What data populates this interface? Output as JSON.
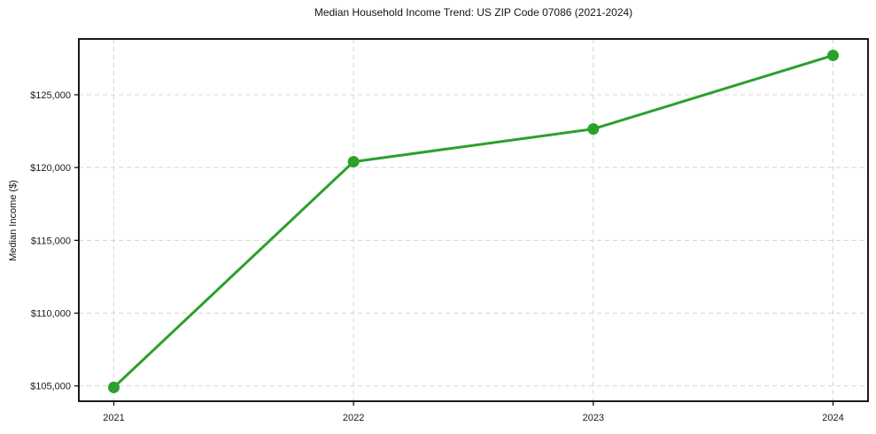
{
  "chart_data": {
    "type": "line",
    "title": "Median Household Income Trend: US ZIP Code 07086 (2021-2024)",
    "xlabel": "",
    "ylabel": "Median Income ($)",
    "categories": [
      "2021",
      "2022",
      "2023",
      "2024"
    ],
    "values": [
      104900,
      120400,
      122650,
      127700
    ],
    "yticks": [
      105000,
      110000,
      115000,
      120000,
      125000
    ],
    "ytick_labels": [
      "$105,000",
      "$110,000",
      "$115,000",
      "$120,000",
      "$125,000"
    ],
    "ylim": [
      103950,
      128830
    ],
    "grid": true,
    "grid_style": "dashed",
    "legend": "none",
    "line_color": "#2ca02c",
    "marker": "circle",
    "grid_color": "#d4d4d4",
    "spine_color": "#000000",
    "text_color": "#1a1a1a",
    "background_color": "#ffffff"
  }
}
